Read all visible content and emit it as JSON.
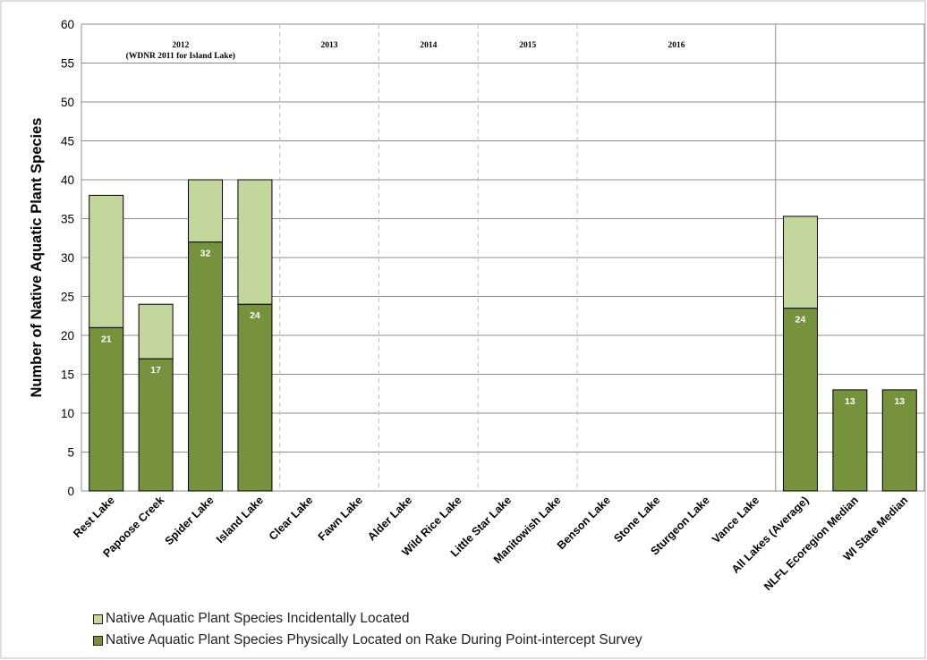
{
  "chart_data": {
    "type": "bar",
    "stacked": true,
    "ylabel": "Number of Native Aquatic Plant Species",
    "xlabel": "",
    "ylim": [
      0,
      60
    ],
    "yticks": [
      0,
      5,
      10,
      15,
      20,
      25,
      30,
      35,
      40,
      45,
      50,
      55,
      60
    ],
    "grid": true,
    "legend_position": "bottom-left",
    "categories": [
      "Rest Lake",
      "Papoose Creek",
      "Spider Lake",
      "Island Lake",
      "Clear Lake",
      "Fawn Lake",
      "Alder Lake",
      "Wild Rice Lake",
      "Little Star Lake",
      "Manitowish Lake",
      "Benson Lake",
      "Stone Lake",
      "Sturgeon Lake",
      "Vance Lake",
      "All Lakes (Average)",
      "NLFL Ecoregion Median",
      "WI State Median"
    ],
    "series": [
      {
        "name": "Native Aquatic Plant Species Physically Located on Rake During Point-intercept Survey",
        "color": "#76923c",
        "values": [
          21,
          17,
          32,
          24,
          null,
          null,
          null,
          null,
          null,
          null,
          null,
          null,
          null,
          null,
          23.5,
          13,
          13
        ],
        "data_labels": [
          "21",
          "17",
          "32",
          "24",
          "",
          "",
          "",
          "",
          "",
          "",
          "",
          "",
          "",
          "",
          "24",
          "13",
          "13"
        ]
      },
      {
        "name": "Native Aquatic Plant Species Incidentally Located",
        "color": "#c3d69b",
        "values": [
          17,
          7,
          8,
          16,
          null,
          null,
          null,
          null,
          null,
          null,
          null,
          null,
          null,
          null,
          11.8,
          0,
          0
        ]
      }
    ],
    "year_groups": [
      {
        "label": "2012",
        "sublabel": "(WDNR 2011 for Island Lake)",
        "start": 0,
        "end": 3
      },
      {
        "label": "2013",
        "sublabel": "",
        "start": 4,
        "end": 5
      },
      {
        "label": "2014",
        "sublabel": "",
        "start": 6,
        "end": 7
      },
      {
        "label": "2015",
        "sublabel": "",
        "start": 8,
        "end": 9
      },
      {
        "label": "2016",
        "sublabel": "",
        "start": 10,
        "end": 13
      }
    ]
  },
  "legend": {
    "items": [
      {
        "label": "Native Aquatic Plant Species Incidentally Located",
        "color": "#c3d69b"
      },
      {
        "label": "Native Aquatic Plant Species Physically Located on Rake During Point-intercept Survey",
        "color": "#76923c"
      }
    ]
  }
}
